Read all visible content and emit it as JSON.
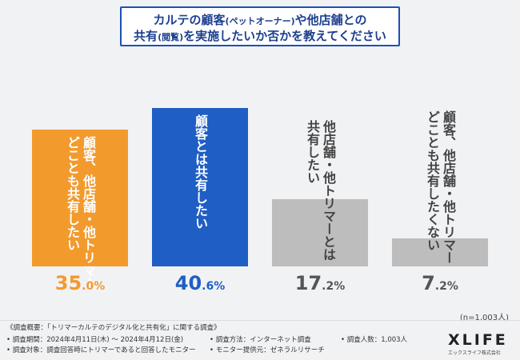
{
  "title": {
    "line1": {
      "pre": "カルテの顧客",
      "small": "(ペットオーナー)",
      "post": "や他店舗との"
    },
    "line2": {
      "pre": "共有",
      "small": "(閲覧)",
      "post": "を実施したいか否かを教えてください"
    }
  },
  "chart_data": {
    "type": "bar",
    "title": "カルテの顧客(ペットオーナー)や他店舗との共有(閲覧)を実施したいか否かを教えてください",
    "categories": [
      "顧客、他店舗・他トリマーどことも共有したい",
      "顧客とは共有したい",
      "他店舗・他トリマーとは共有したい",
      "顧客、他店舗・他トリマーどことも共有したくない"
    ],
    "values": [
      35.0,
      40.6,
      17.2,
      7.2
    ],
    "ylim": [
      0,
      45
    ],
    "unit": "%",
    "colors": [
      "#f39a2c",
      "#1f5ec4",
      "#bdbdbd",
      "#bdbdbd"
    ],
    "pct_colors": [
      "#f39a2c",
      "#1f5ec4",
      "#555555",
      "#555555"
    ],
    "labels": [
      {
        "lines": [
          "顧客、他店舗・他トリマー",
          "どことも共有したい"
        ],
        "color": "#ffffff"
      },
      {
        "lines": [
          "顧客とは共有したい"
        ],
        "color": "#ffffff"
      },
      {
        "lines": [
          "他店舗・他トリマーとは",
          "共有したい"
        ],
        "color": "#444444"
      },
      {
        "lines": [
          "顧客、他店舗・他トリマー",
          "どことも共有したくない"
        ],
        "color": "#444444"
      }
    ],
    "pct_text": [
      {
        "big": "35",
        "small": ".0%"
      },
      {
        "big": "40",
        "small": ".6%"
      },
      {
        "big": "17",
        "small": ".2%"
      },
      {
        "big": "7",
        "small": ".2%"
      }
    ]
  },
  "sample_note": "(n=1,003人)",
  "footer": {
    "overview": "《調査概要：「トリマーカルテのデジタル化と共有化」に関する調査》",
    "period": "• 調査期間：2024年4月11日(木) ～ 2024年4月12日(金)",
    "method": "• 調査方法：インターネット調査",
    "count": "• 調査人数：1,003人",
    "target": "• 調査対象：調査回答時にトリマーであると回答したモニター",
    "provider": "• モニター提供元：ゼネラルリサーチ"
  },
  "logo": {
    "name": "XLIFE",
    "sub": "エックスライフ株式会社"
  }
}
